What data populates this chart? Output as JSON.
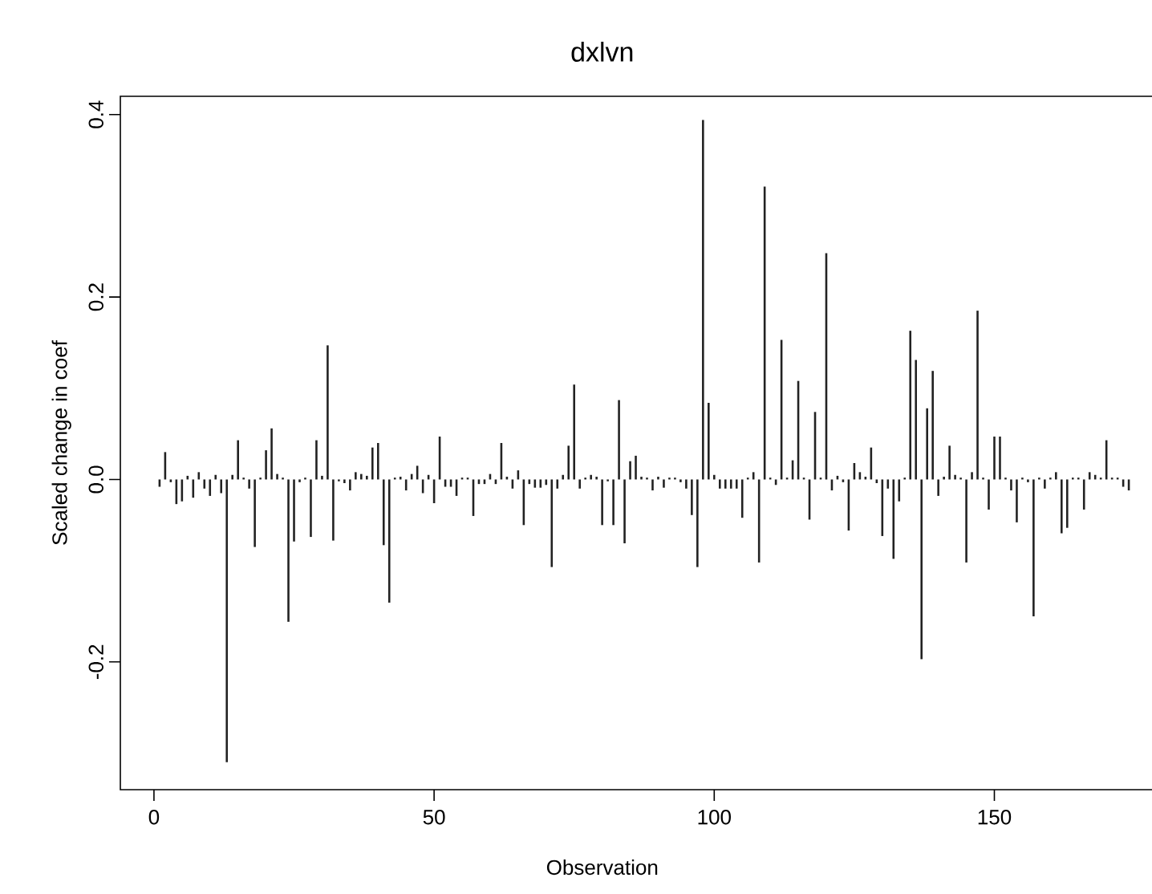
{
  "chart_data": {
    "type": "bar",
    "title": "dxlvn",
    "xlabel": "Observation",
    "ylabel": "Scaled change in coef",
    "color": "#222222",
    "x": [
      1,
      2,
      3,
      4,
      5,
      6,
      7,
      8,
      9,
      10,
      11,
      12,
      13,
      14,
      15,
      16,
      17,
      18,
      19,
      20,
      21,
      22,
      23,
      24,
      25,
      26,
      27,
      28,
      29,
      30,
      31,
      32,
      33,
      34,
      35,
      36,
      37,
      38,
      39,
      40,
      41,
      42,
      43,
      44,
      45,
      46,
      47,
      48,
      49,
      50,
      51,
      52,
      53,
      54,
      55,
      56,
      57,
      58,
      59,
      60,
      61,
      62,
      63,
      64,
      65,
      66,
      67,
      68,
      69,
      70,
      71,
      72,
      73,
      74,
      75,
      76,
      77,
      78,
      79,
      80,
      81,
      82,
      83,
      84,
      85,
      86,
      87,
      88,
      89,
      90,
      91,
      92,
      93,
      94,
      95,
      96,
      97,
      98,
      99,
      100,
      101,
      102,
      103,
      104,
      105,
      106,
      107,
      108,
      109,
      110,
      111,
      112,
      113,
      114,
      115,
      116,
      117,
      118,
      119,
      120,
      121,
      122,
      123,
      124,
      125,
      126,
      127,
      128,
      129,
      130,
      131,
      132,
      133,
      134,
      135,
      136,
      137,
      138,
      139,
      140,
      141,
      142,
      143,
      144,
      145,
      146,
      147,
      148,
      149,
      150,
      151,
      152,
      153,
      154,
      155,
      156,
      157,
      158,
      159,
      160,
      161,
      162,
      163,
      164,
      165,
      166,
      167,
      168,
      169,
      170,
      171,
      172,
      173,
      174
    ],
    "values": [
      -0.008,
      0.03,
      -0.003,
      -0.027,
      -0.024,
      0.004,
      -0.02,
      0.008,
      -0.01,
      -0.018,
      0.005,
      -0.015,
      -0.31,
      0.005,
      0.043,
      0.002,
      -0.01,
      -0.074,
      0.002,
      0.032,
      0.056,
      0.006,
      0.002,
      -0.156,
      -0.068,
      -0.003,
      0.002,
      -0.063,
      0.043,
      0.004,
      0.147,
      -0.067,
      -0.002,
      -0.004,
      -0.012,
      0.008,
      0.006,
      0.004,
      0.035,
      0.04,
      -0.072,
      -0.135,
      0.002,
      0.003,
      -0.012,
      0.006,
      0.015,
      -0.015,
      0.005,
      -0.026,
      0.047,
      -0.008,
      -0.008,
      -0.018,
      0.002,
      0.002,
      -0.04,
      -0.005,
      -0.005,
      0.006,
      -0.005,
      0.04,
      0.003,
      -0.01,
      0.01,
      -0.05,
      -0.005,
      -0.009,
      -0.009,
      -0.006,
      -0.096,
      -0.01,
      0.005,
      0.037,
      0.104,
      -0.01,
      0.002,
      0.005,
      0.003,
      -0.05,
      -0.002,
      -0.05,
      0.087,
      -0.07,
      0.02,
      0.026,
      0.003,
      0.002,
      -0.012,
      0.003,
      -0.009,
      0.002,
      0.002,
      -0.003,
      -0.01,
      -0.039,
      -0.096,
      0.394,
      0.084,
      0.005,
      -0.01,
      -0.01,
      -0.01,
      -0.01,
      -0.042,
      0.002,
      0.008,
      -0.091,
      0.321,
      0.002,
      -0.006,
      0.153,
      0.002,
      0.021,
      0.108,
      0.002,
      -0.044,
      0.074,
      0.002,
      0.248,
      -0.012,
      0.004,
      -0.003,
      -0.056,
      0.018,
      0.008,
      0.003,
      0.035,
      -0.004,
      -0.062,
      -0.01,
      -0.087,
      -0.024,
      0.002,
      0.163,
      0.131,
      -0.197,
      0.078,
      0.119,
      -0.018,
      0.003,
      0.037,
      0.005,
      0.002,
      -0.091,
      0.008,
      0.185,
      0.002,
      -0.033,
      0.047,
      0.047,
      0.002,
      -0.012,
      -0.047,
      0.002,
      -0.003,
      -0.15,
      0.002,
      -0.01,
      0.002,
      0.008,
      -0.059,
      -0.053,
      0.002,
      0.002,
      -0.033,
      0.008,
      0.005,
      0.002,
      0.043,
      0.002,
      0.002,
      -0.008,
      -0.012
    ],
    "xlim": [
      -6,
      181
    ],
    "ylim": [
      -0.34,
      0.42
    ],
    "xticks": [
      0,
      50,
      100,
      150
    ],
    "yticks": [
      -0.2,
      {
        "value": 0,
        "label": "0.0"
      },
      0.2,
      0.4
    ]
  }
}
